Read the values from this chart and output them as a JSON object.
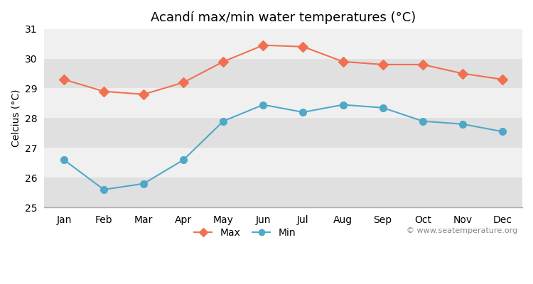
{
  "months": [
    "Jan",
    "Feb",
    "Mar",
    "Apr",
    "May",
    "Jun",
    "Jul",
    "Aug",
    "Sep",
    "Oct",
    "Nov",
    "Dec"
  ],
  "max_temps": [
    29.3,
    28.9,
    28.8,
    29.2,
    29.9,
    30.45,
    30.4,
    29.9,
    29.8,
    29.8,
    29.5,
    29.3
  ],
  "min_temps": [
    26.6,
    25.6,
    25.8,
    26.6,
    27.9,
    28.45,
    28.2,
    28.45,
    28.35,
    27.9,
    27.8,
    27.55
  ],
  "max_color": "#f07050",
  "min_color": "#50a8c8",
  "fig_bg_color": "#ffffff",
  "plot_bg_color": "#f0f0f0",
  "band_color_light": "#f0f0f0",
  "band_color_dark": "#e0e0e0",
  "title": "Acandí max/min water temperatures (°C)",
  "ylabel": "Celcius (°C)",
  "ylim": [
    25,
    31
  ],
  "yticks": [
    25,
    26,
    27,
    28,
    29,
    30,
    31
  ],
  "watermark": "© www.seatemperature.org",
  "title_fontsize": 13,
  "axis_fontsize": 10,
  "tick_fontsize": 10,
  "watermark_fontsize": 8
}
